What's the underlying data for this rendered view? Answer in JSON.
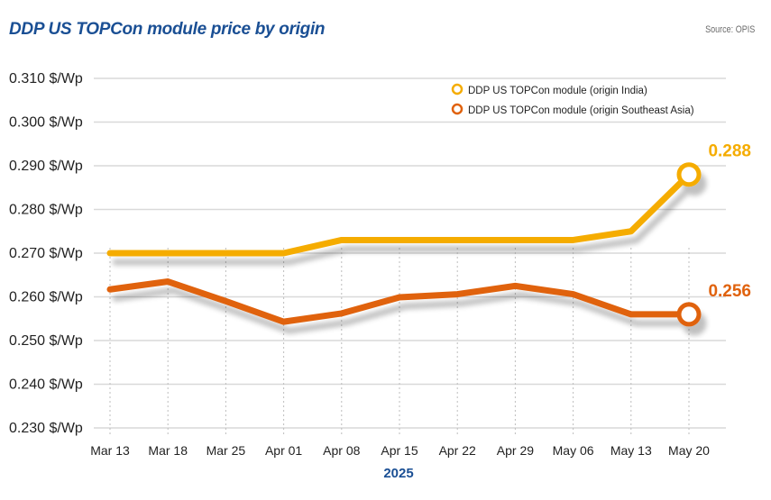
{
  "header": {
    "title": "DDP US TOPCon module price by origin",
    "source": "Source: OPIS"
  },
  "colors": {
    "title": "#1a4f94",
    "india": "#f5ac00",
    "sea": "#e0620d",
    "grid": "#d9d9d9"
  },
  "chart_data": {
    "type": "line",
    "title": "DDP US TOPCon module price by origin",
    "xlabel": "2025",
    "ylabel": "",
    "categories": [
      "Mar 13",
      "Mar 18",
      "Mar 25",
      "Apr 01",
      "Apr 08",
      "Apr 15",
      "Apr 22",
      "Apr 29",
      "May 06",
      "May 13",
      "May 20"
    ],
    "ylim": [
      0.23,
      0.31
    ],
    "yticks": [
      0.31,
      0.3,
      0.29,
      0.28,
      0.27,
      0.26,
      0.25,
      0.24,
      0.23
    ],
    "ytick_labels": [
      "0.310 $/Wp",
      "0.300 $/Wp",
      "0.290 $/Wp",
      "0.280 $/Wp",
      "0.270 $/Wp",
      "0.260 $/Wp",
      "0.250 $/Wp",
      "0.240 $/Wp",
      "0.230 $/Wp"
    ],
    "grid": true,
    "legend_position": "top-right",
    "series": [
      {
        "name": "DDP US TOPCon module (origin India)",
        "color": "#f5ac00",
        "values": [
          0.27,
          0.27,
          0.27,
          0.27,
          0.273,
          0.273,
          0.273,
          0.273,
          0.273,
          0.275,
          0.288
        ],
        "end_label": "0.288"
      },
      {
        "name": "DDP US TOPCon module (origin Southeast Asia)",
        "color": "#e0620d",
        "values": [
          0.2617,
          0.2635,
          0.259,
          0.2543,
          0.2562,
          0.2599,
          0.2606,
          0.2625,
          0.2606,
          0.256,
          0.256
        ],
        "end_label": "0.256"
      }
    ]
  }
}
